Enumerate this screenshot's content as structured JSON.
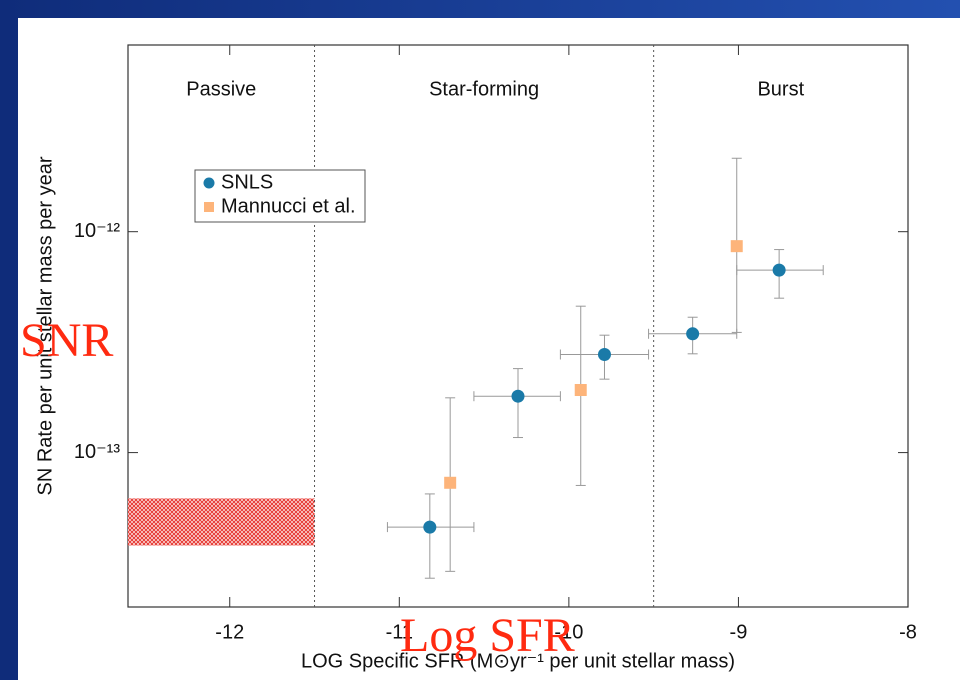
{
  "chart_data": {
    "type": "scatter",
    "xlabel": "LOG Specific SFR (M⊙yr⁻¹ per unit stellar mass)",
    "ylabel": "SN Rate per unit stellar mass per year",
    "xlim": [
      -12.6,
      -8
    ],
    "ylim": [
      2e-14,
      7e-12
    ],
    "ylog": true,
    "xticks": [
      -12,
      -11,
      -10,
      -9,
      -8
    ],
    "yticks": [
      {
        "value": 1e-13,
        "label": "10⁻¹³"
      },
      {
        "value": 1e-12,
        "label": "10⁻¹²"
      }
    ],
    "legend": "upper left",
    "dividers": [
      -11.5,
      -9.5
    ],
    "regions": [
      "Passive",
      "Star-forming",
      "Burst"
    ],
    "region": {
      "xlim": [
        -12.6,
        -11.5
      ],
      "ylim": [
        3.8e-14,
        6.2e-14
      ],
      "color": "#e8403a"
    },
    "series": [
      {
        "name": "SNLS",
        "color": "#1a7aa8",
        "marker": "circle",
        "x": [
          -10.82,
          -10.3,
          -9.79,
          -9.27,
          -8.76
        ],
        "values": [
          4.6e-14,
          1.8e-13,
          2.78e-13,
          3.45e-13,
          6.7e-13
        ],
        "y_low": [
          2.7e-14,
          1.17e-13,
          2.15e-13,
          2.8e-13,
          5e-13
        ],
        "y_high": [
          6.5e-14,
          2.4e-13,
          3.4e-13,
          4.1e-13,
          8.3e-13
        ],
        "x_low": [
          -11.07,
          -10.56,
          -10.05,
          -9.53,
          -9.01
        ],
        "x_high": [
          -10.56,
          -10.05,
          -9.53,
          -9.01,
          -8.5
        ]
      },
      {
        "name": "Mannucci et al.",
        "color": "#fdb47a",
        "marker": "square",
        "x": [
          -10.7,
          -9.93,
          -9.01
        ],
        "values": [
          7.3e-14,
          1.92e-13,
          8.6e-13
        ],
        "y_low": [
          2.9e-14,
          7.1e-14,
          3.5e-13
        ],
        "y_high": [
          1.77e-13,
          4.6e-13,
          2.15e-12
        ]
      }
    ]
  },
  "slide": {
    "annotations": [
      "SNR",
      "Log SFR"
    ]
  }
}
